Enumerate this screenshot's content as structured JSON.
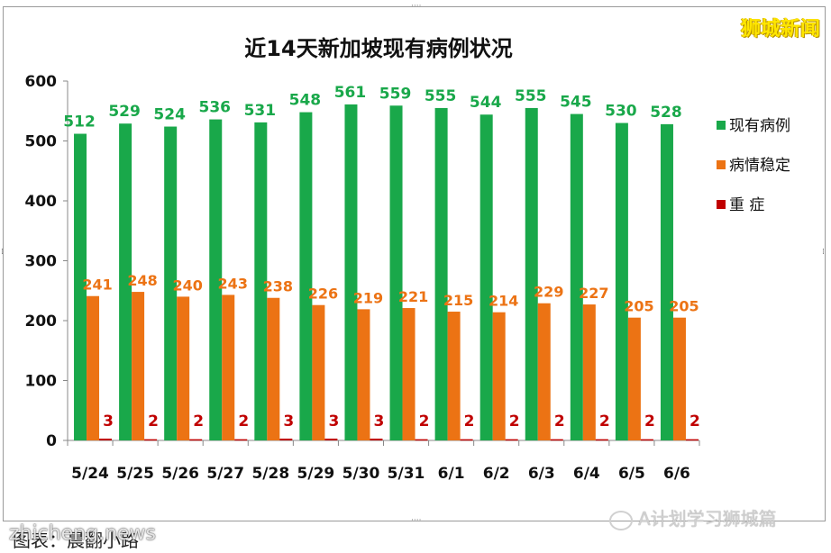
{
  "title": "近14天新加坡现有病例状况",
  "brand": "狮城新闻",
  "caption": "图表：晨翻小路",
  "watermark": "zhicheng.news",
  "wechat_label": "A计划学习狮城篇",
  "colors": {
    "active": "#19a84a",
    "stable": "#ec7314",
    "critical": "#c00000"
  },
  "chart_data": {
    "type": "bar",
    "title": "近14天新加坡现有病例状况",
    "categories": [
      "5/24",
      "5/25",
      "5/26",
      "5/27",
      "5/28",
      "5/29",
      "5/30",
      "5/31",
      "6/1",
      "6/2",
      "6/3",
      "6/4",
      "6/5",
      "6/6"
    ],
    "series": [
      {
        "name": "现有病例",
        "color": "#19a84a",
        "values": [
          512,
          529,
          524,
          536,
          531,
          548,
          561,
          559,
          555,
          544,
          555,
          545,
          530,
          528
        ]
      },
      {
        "name": "病情稳定",
        "color": "#ec7314",
        "values": [
          241,
          248,
          240,
          243,
          238,
          226,
          219,
          221,
          215,
          214,
          229,
          227,
          205,
          205
        ]
      },
      {
        "name": "重 症",
        "color": "#c00000",
        "values": [
          3,
          2,
          2,
          2,
          3,
          3,
          3,
          2,
          2,
          2,
          2,
          2,
          2,
          2
        ]
      }
    ],
    "ylim": [
      0,
      600
    ],
    "yticks": [
      0,
      100,
      200,
      300,
      400,
      500,
      600
    ],
    "legend": "right",
    "grid": false
  }
}
